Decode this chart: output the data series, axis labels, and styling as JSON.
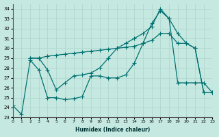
{
  "xlabel": "Humidex (Indice chaleur)",
  "bg_color": "#c5e8e0",
  "grid_color": "#dff0eb",
  "line_color": "#007070",
  "xlim": [
    0,
    23
  ],
  "ylim": [
    23,
    34.5
  ],
  "yticks": [
    23,
    24,
    25,
    26,
    27,
    28,
    29,
    30,
    31,
    32,
    33,
    34
  ],
  "xticks": [
    0,
    1,
    2,
    3,
    4,
    5,
    6,
    7,
    8,
    9,
    10,
    11,
    12,
    13,
    14,
    15,
    16,
    17,
    18,
    19,
    20,
    21,
    22,
    23
  ],
  "line1_x": [
    2,
    3,
    4,
    5,
    6,
    7,
    8,
    9,
    10,
    11,
    12,
    13,
    14,
    15,
    16,
    17,
    18,
    19,
    20,
    21,
    22,
    23
  ],
  "line1_y": [
    29.0,
    29.0,
    29.2,
    29.3,
    29.4,
    29.5,
    29.6,
    29.7,
    29.8,
    29.9,
    30.0,
    30.1,
    30.2,
    30.5,
    30.8,
    31.5,
    31.5,
    30.5,
    30.5,
    30.0,
    25.5,
    25.5
  ],
  "line2_x": [
    2,
    3,
    4,
    5,
    6,
    7,
    8,
    9,
    10,
    11,
    12,
    13,
    14,
    15,
    16,
    17,
    18,
    19,
    20,
    21,
    22,
    23
  ],
  "line2_y": [
    29.0,
    29.0,
    27.8,
    25.8,
    26.5,
    27.2,
    27.3,
    27.5,
    28.0,
    29.0,
    30.0,
    30.5,
    31.0,
    31.5,
    32.2,
    34.0,
    33.0,
    31.5,
    30.5,
    30.0,
    25.5,
    25.5
  ],
  "line3_x": [
    0,
    1,
    2,
    3,
    4,
    5,
    6,
    7,
    8,
    9,
    10,
    11,
    12,
    13,
    14,
    15,
    16,
    17,
    18,
    19,
    20,
    21,
    22,
    23
  ],
  "line3_y": [
    24.2,
    23.3,
    28.8,
    27.8,
    25.0,
    25.0,
    24.8,
    24.9,
    25.1,
    27.2,
    27.2,
    27.0,
    27.0,
    27.3,
    28.5,
    30.5,
    32.5,
    33.8,
    33.0,
    26.5,
    26.5,
    26.5,
    26.5,
    25.5
  ]
}
